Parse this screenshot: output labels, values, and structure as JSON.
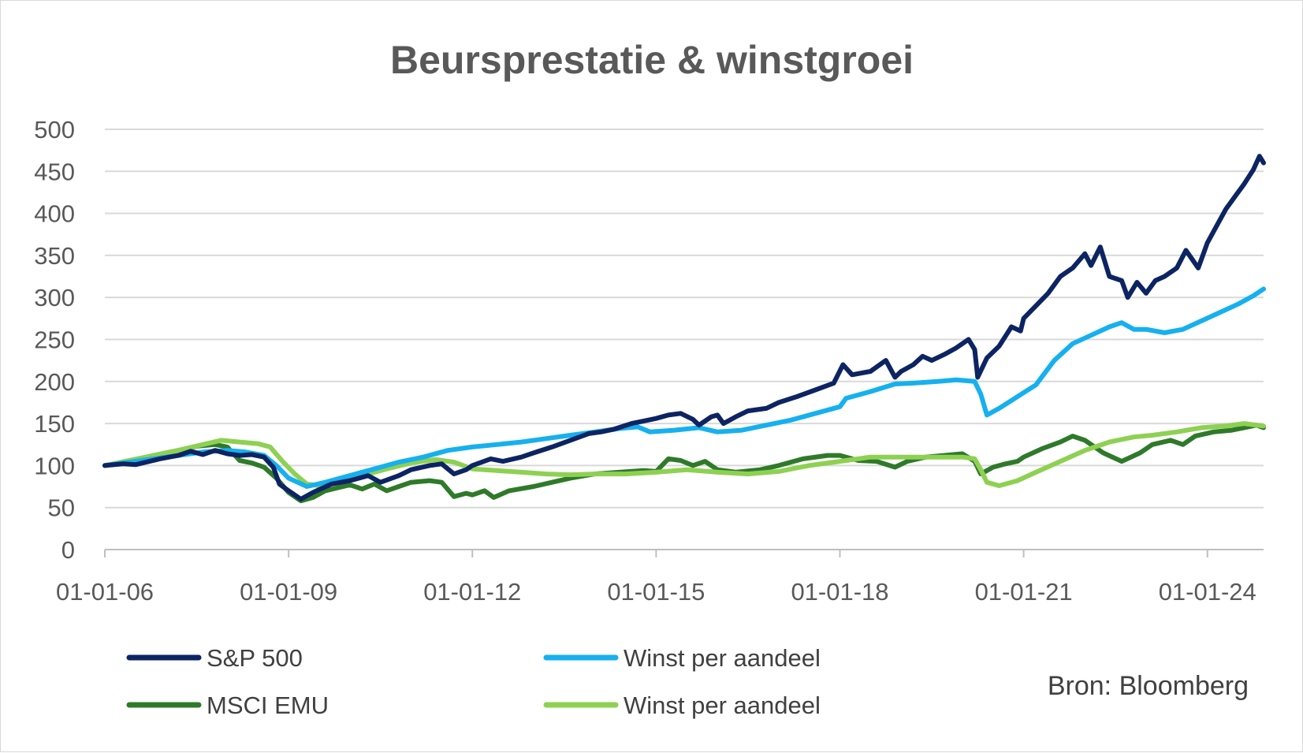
{
  "chart_data": {
    "type": "line",
    "title": "Beursprestatie & winstgroei",
    "source": "Bron: Bloomberg",
    "xlabel": "",
    "ylabel": "",
    "ylim": [
      0,
      500
    ],
    "yticks": [
      0,
      50,
      100,
      150,
      200,
      250,
      300,
      350,
      400,
      450,
      500
    ],
    "xlim": [
      2006.0,
      2024.917
    ],
    "xticks": [
      {
        "x": 2006,
        "label": "01-01-06"
      },
      {
        "x": 2009,
        "label": "01-01-09"
      },
      {
        "x": 2012,
        "label": "01-01-12"
      },
      {
        "x": 2015,
        "label": "01-01-15"
      },
      {
        "x": 2018,
        "label": "01-01-18"
      },
      {
        "x": 2021,
        "label": "01-01-21"
      },
      {
        "x": 2024,
        "label": "01-01-24"
      }
    ],
    "grid": true,
    "legend_position": "bottom",
    "series": [
      {
        "name": "S&P 500",
        "color": "#0d2463",
        "points": [
          [
            2006.0,
            100
          ],
          [
            2006.3,
            102
          ],
          [
            2006.5,
            101
          ],
          [
            2006.9,
            108
          ],
          [
            2007.2,
            112
          ],
          [
            2007.4,
            117
          ],
          [
            2007.6,
            113
          ],
          [
            2007.8,
            118
          ],
          [
            2008.0,
            114
          ],
          [
            2008.2,
            112
          ],
          [
            2008.4,
            113
          ],
          [
            2008.6,
            110
          ],
          [
            2008.75,
            98
          ],
          [
            2008.85,
            78
          ],
          [
            2009.0,
            70
          ],
          [
            2009.2,
            60
          ],
          [
            2009.4,
            68
          ],
          [
            2009.7,
            78
          ],
          [
            2010.0,
            82
          ],
          [
            2010.3,
            88
          ],
          [
            2010.5,
            80
          ],
          [
            2010.8,
            88
          ],
          [
            2011.0,
            95
          ],
          [
            2011.3,
            100
          ],
          [
            2011.5,
            102
          ],
          [
            2011.7,
            90
          ],
          [
            2011.9,
            95
          ],
          [
            2012.0,
            100
          ],
          [
            2012.3,
            108
          ],
          [
            2012.5,
            105
          ],
          [
            2012.8,
            110
          ],
          [
            2013.0,
            115
          ],
          [
            2013.3,
            122
          ],
          [
            2013.6,
            130
          ],
          [
            2013.9,
            138
          ],
          [
            2014.1,
            140
          ],
          [
            2014.3,
            143
          ],
          [
            2014.6,
            150
          ],
          [
            2014.8,
            153
          ],
          [
            2015.0,
            156
          ],
          [
            2015.2,
            160
          ],
          [
            2015.4,
            162
          ],
          [
            2015.6,
            155
          ],
          [
            2015.7,
            148
          ],
          [
            2015.9,
            158
          ],
          [
            2016.0,
            160
          ],
          [
            2016.1,
            150
          ],
          [
            2016.3,
            158
          ],
          [
            2016.5,
            165
          ],
          [
            2016.8,
            168
          ],
          [
            2017.0,
            175
          ],
          [
            2017.3,
            182
          ],
          [
            2017.6,
            190
          ],
          [
            2017.9,
            198
          ],
          [
            2018.05,
            220
          ],
          [
            2018.2,
            208
          ],
          [
            2018.5,
            212
          ],
          [
            2018.75,
            225
          ],
          [
            2018.9,
            205
          ],
          [
            2019.0,
            212
          ],
          [
            2019.2,
            220
          ],
          [
            2019.35,
            230
          ],
          [
            2019.5,
            225
          ],
          [
            2019.7,
            232
          ],
          [
            2019.9,
            240
          ],
          [
            2020.1,
            250
          ],
          [
            2020.2,
            238
          ],
          [
            2020.25,
            205
          ],
          [
            2020.4,
            228
          ],
          [
            2020.6,
            242
          ],
          [
            2020.8,
            265
          ],
          [
            2020.95,
            260
          ],
          [
            2021.0,
            275
          ],
          [
            2021.2,
            290
          ],
          [
            2021.4,
            305
          ],
          [
            2021.6,
            325
          ],
          [
            2021.8,
            335
          ],
          [
            2022.0,
            352
          ],
          [
            2022.1,
            338
          ],
          [
            2022.25,
            360
          ],
          [
            2022.4,
            325
          ],
          [
            2022.6,
            320
          ],
          [
            2022.7,
            300
          ],
          [
            2022.85,
            318
          ],
          [
            2023.0,
            305
          ],
          [
            2023.15,
            320
          ],
          [
            2023.3,
            325
          ],
          [
            2023.5,
            335
          ],
          [
            2023.65,
            356
          ],
          [
            2023.85,
            335
          ],
          [
            2024.0,
            365
          ],
          [
            2024.15,
            385
          ],
          [
            2024.3,
            405
          ],
          [
            2024.45,
            420
          ],
          [
            2024.6,
            435
          ],
          [
            2024.75,
            452
          ],
          [
            2024.85,
            468
          ],
          [
            2024.917,
            460
          ]
        ]
      },
      {
        "name": "Winst per aandeel",
        "color": "#16b0ef",
        "points": [
          [
            2006.0,
            100
          ],
          [
            2006.4,
            104
          ],
          [
            2006.8,
            108
          ],
          [
            2007.2,
            112
          ],
          [
            2007.6,
            116
          ],
          [
            2008.0,
            118
          ],
          [
            2008.3,
            116
          ],
          [
            2008.6,
            112
          ],
          [
            2008.8,
            100
          ],
          [
            2009.0,
            85
          ],
          [
            2009.3,
            75
          ],
          [
            2009.6,
            80
          ],
          [
            2010.0,
            88
          ],
          [
            2010.4,
            96
          ],
          [
            2010.8,
            104
          ],
          [
            2011.2,
            110
          ],
          [
            2011.6,
            118
          ],
          [
            2012.0,
            122
          ],
          [
            2012.4,
            125
          ],
          [
            2012.8,
            128
          ],
          [
            2013.2,
            132
          ],
          [
            2013.6,
            136
          ],
          [
            2014.0,
            140
          ],
          [
            2014.4,
            144
          ],
          [
            2014.7,
            146
          ],
          [
            2014.9,
            140
          ],
          [
            2015.3,
            142
          ],
          [
            2015.7,
            145
          ],
          [
            2016.0,
            140
          ],
          [
            2016.4,
            142
          ],
          [
            2016.8,
            148
          ],
          [
            2017.2,
            154
          ],
          [
            2017.6,
            162
          ],
          [
            2018.0,
            170
          ],
          [
            2018.1,
            180
          ],
          [
            2018.5,
            188
          ],
          [
            2018.9,
            197
          ],
          [
            2019.2,
            198
          ],
          [
            2019.6,
            200
          ],
          [
            2019.9,
            202
          ],
          [
            2020.2,
            200
          ],
          [
            2020.3,
            185
          ],
          [
            2020.4,
            160
          ],
          [
            2020.6,
            168
          ],
          [
            2020.9,
            182
          ],
          [
            2021.2,
            196
          ],
          [
            2021.5,
            225
          ],
          [
            2021.8,
            245
          ],
          [
            2022.1,
            255
          ],
          [
            2022.4,
            265
          ],
          [
            2022.6,
            270
          ],
          [
            2022.8,
            262
          ],
          [
            2023.0,
            262
          ],
          [
            2023.3,
            258
          ],
          [
            2023.6,
            262
          ],
          [
            2023.9,
            272
          ],
          [
            2024.2,
            282
          ],
          [
            2024.5,
            292
          ],
          [
            2024.75,
            302
          ],
          [
            2024.917,
            310
          ]
        ]
      },
      {
        "name": "MSCI EMU",
        "color": "#2f7a2a",
        "points": [
          [
            2006.0,
            100
          ],
          [
            2006.4,
            105
          ],
          [
            2006.8,
            112
          ],
          [
            2007.2,
            118
          ],
          [
            2007.5,
            123
          ],
          [
            2007.8,
            125
          ],
          [
            2008.0,
            122
          ],
          [
            2008.2,
            106
          ],
          [
            2008.4,
            103
          ],
          [
            2008.6,
            98
          ],
          [
            2008.8,
            85
          ],
          [
            2009.0,
            68
          ],
          [
            2009.2,
            58
          ],
          [
            2009.4,
            62
          ],
          [
            2009.6,
            70
          ],
          [
            2010.0,
            77
          ],
          [
            2010.2,
            72
          ],
          [
            2010.4,
            78
          ],
          [
            2010.6,
            70
          ],
          [
            2010.8,
            75
          ],
          [
            2011.0,
            80
          ],
          [
            2011.3,
            82
          ],
          [
            2011.5,
            80
          ],
          [
            2011.7,
            63
          ],
          [
            2011.9,
            67
          ],
          [
            2012.0,
            65
          ],
          [
            2012.2,
            70
          ],
          [
            2012.35,
            62
          ],
          [
            2012.6,
            70
          ],
          [
            2013.0,
            75
          ],
          [
            2013.3,
            80
          ],
          [
            2013.6,
            85
          ],
          [
            2014.0,
            90
          ],
          [
            2014.4,
            92
          ],
          [
            2014.8,
            94
          ],
          [
            2015.0,
            93
          ],
          [
            2015.2,
            108
          ],
          [
            2015.4,
            106
          ],
          [
            2015.6,
            100
          ],
          [
            2015.8,
            105
          ],
          [
            2016.0,
            95
          ],
          [
            2016.3,
            92
          ],
          [
            2016.7,
            95
          ],
          [
            2017.0,
            100
          ],
          [
            2017.4,
            108
          ],
          [
            2017.8,
            112
          ],
          [
            2018.0,
            112
          ],
          [
            2018.3,
            106
          ],
          [
            2018.6,
            105
          ],
          [
            2018.9,
            98
          ],
          [
            2019.1,
            105
          ],
          [
            2019.4,
            110
          ],
          [
            2019.7,
            112
          ],
          [
            2020.0,
            114
          ],
          [
            2020.2,
            105
          ],
          [
            2020.3,
            90
          ],
          [
            2020.5,
            98
          ],
          [
            2020.7,
            102
          ],
          [
            2020.9,
            105
          ],
          [
            2021.0,
            110
          ],
          [
            2021.3,
            120
          ],
          [
            2021.6,
            128
          ],
          [
            2021.8,
            135
          ],
          [
            2022.0,
            130
          ],
          [
            2022.3,
            115
          ],
          [
            2022.6,
            105
          ],
          [
            2022.9,
            115
          ],
          [
            2023.1,
            125
          ],
          [
            2023.4,
            130
          ],
          [
            2023.6,
            125
          ],
          [
            2023.8,
            135
          ],
          [
            2024.1,
            140
          ],
          [
            2024.4,
            142
          ],
          [
            2024.6,
            145
          ],
          [
            2024.8,
            148
          ],
          [
            2024.917,
            145
          ]
        ]
      },
      {
        "name": "Winst per aandeel",
        "color": "#8ed152",
        "points": [
          [
            2006.0,
            100
          ],
          [
            2006.4,
            106
          ],
          [
            2006.8,
            112
          ],
          [
            2007.2,
            118
          ],
          [
            2007.6,
            125
          ],
          [
            2007.9,
            130
          ],
          [
            2008.2,
            128
          ],
          [
            2008.5,
            126
          ],
          [
            2008.7,
            122
          ],
          [
            2008.9,
            105
          ],
          [
            2009.1,
            90
          ],
          [
            2009.3,
            78
          ],
          [
            2009.5,
            76
          ],
          [
            2009.8,
            80
          ],
          [
            2010.2,
            88
          ],
          [
            2010.6,
            96
          ],
          [
            2011.0,
            103
          ],
          [
            2011.4,
            107
          ],
          [
            2011.7,
            104
          ],
          [
            2012.0,
            96
          ],
          [
            2012.4,
            94
          ],
          [
            2012.8,
            92
          ],
          [
            2013.2,
            90
          ],
          [
            2013.6,
            89
          ],
          [
            2014.0,
            90
          ],
          [
            2014.5,
            90
          ],
          [
            2015.0,
            92
          ],
          [
            2015.5,
            95
          ],
          [
            2016.0,
            92
          ],
          [
            2016.5,
            90
          ],
          [
            2017.0,
            93
          ],
          [
            2017.5,
            100
          ],
          [
            2018.0,
            105
          ],
          [
            2018.5,
            110
          ],
          [
            2019.0,
            110
          ],
          [
            2019.5,
            110
          ],
          [
            2020.0,
            110
          ],
          [
            2020.2,
            108
          ],
          [
            2020.3,
            95
          ],
          [
            2020.4,
            80
          ],
          [
            2020.6,
            76
          ],
          [
            2020.9,
            82
          ],
          [
            2021.2,
            92
          ],
          [
            2021.6,
            105
          ],
          [
            2022.0,
            118
          ],
          [
            2022.4,
            128
          ],
          [
            2022.8,
            134
          ],
          [
            2023.1,
            136
          ],
          [
            2023.5,
            140
          ],
          [
            2023.9,
            145
          ],
          [
            2024.3,
            147
          ],
          [
            2024.6,
            150
          ],
          [
            2024.917,
            147
          ]
        ]
      }
    ]
  }
}
